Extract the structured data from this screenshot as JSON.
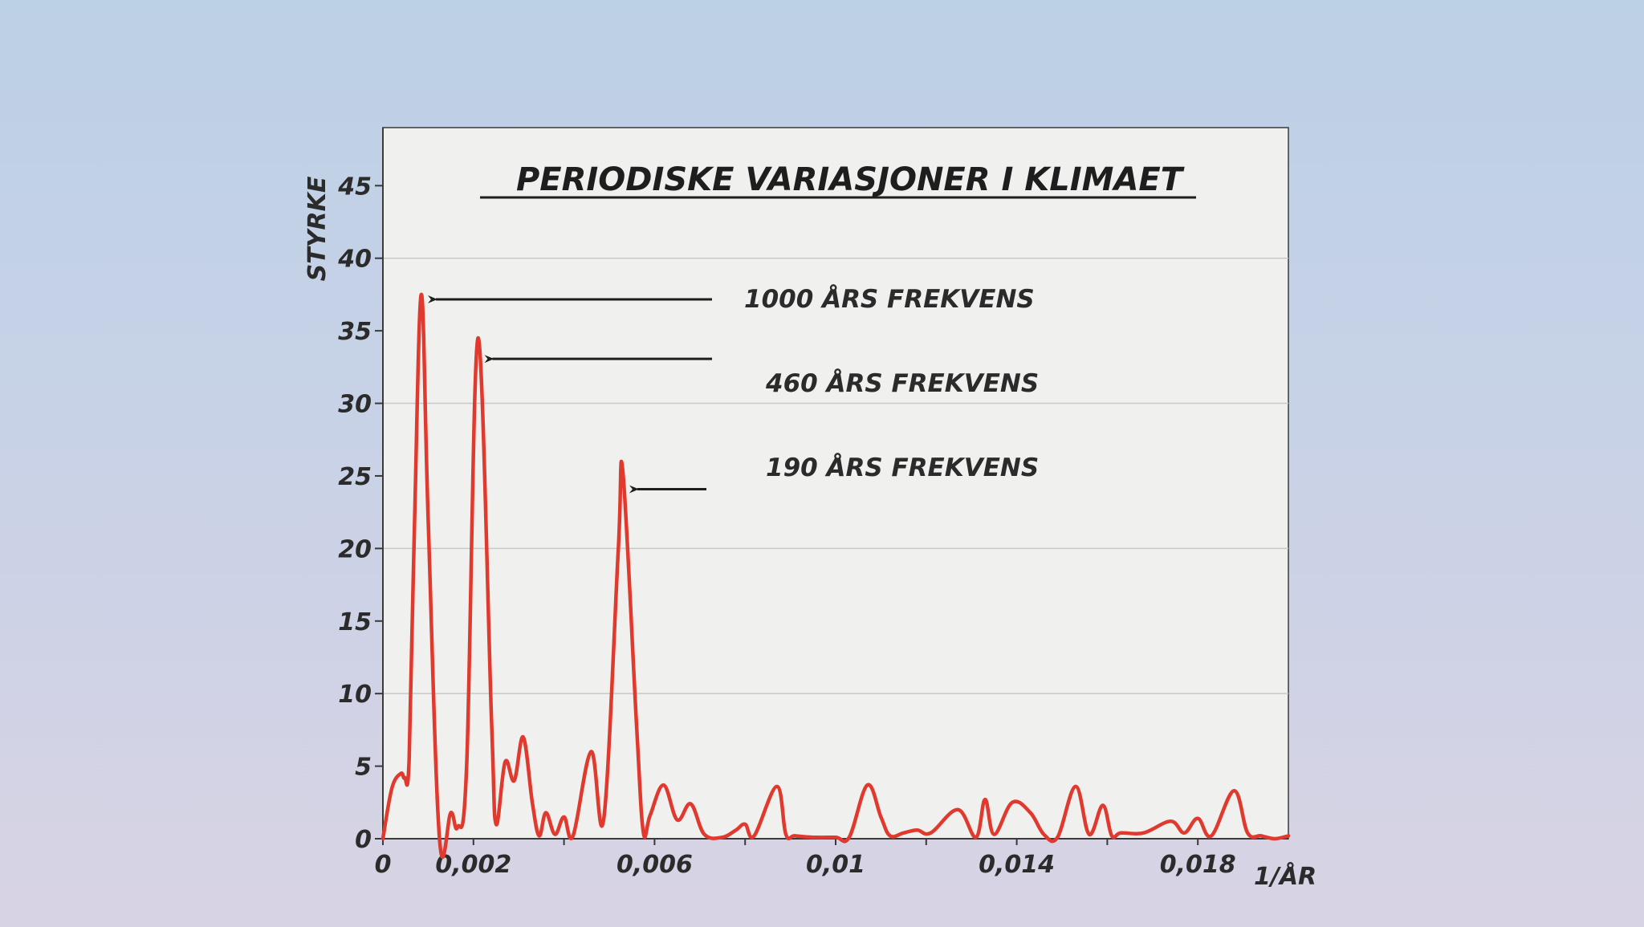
{
  "chart_data": {
    "type": "line",
    "title": "PERIODISKE VARIASJONER I KLIMAET",
    "ylabel": "STYRKE",
    "xlabel": "1/ÅR",
    "ylim": [
      0,
      49
    ],
    "xlim": [
      0,
      0.02
    ],
    "y_ticks": [
      0,
      5,
      10,
      15,
      20,
      25,
      30,
      35,
      40,
      45
    ],
    "y_tick_labels": [
      "0",
      "5",
      "10",
      "15",
      "20",
      "25",
      "30",
      "35",
      "40",
      "45"
    ],
    "x_ticks": [
      0,
      0.002,
      0.004,
      0.006,
      0.008,
      0.01,
      0.012,
      0.014,
      0.016,
      0.018
    ],
    "x_tick_labels": [
      {
        "x": 0,
        "label": "0"
      },
      {
        "x": 0.002,
        "label": "0,002"
      },
      {
        "x": 0.006,
        "label": "0,006"
      },
      {
        "x": 0.01,
        "label": "0,01"
      },
      {
        "x": 0.014,
        "label": "0,014"
      },
      {
        "x": 0.018,
        "label": "0,018"
      }
    ],
    "gridlines_y": [
      10,
      20,
      30,
      40
    ],
    "series": [
      {
        "color": "#e03a2f",
        "points": [
          [
            0,
            0
          ],
          [
            0.0002,
            3.5
          ],
          [
            0.0004,
            4.5
          ],
          [
            0.00048,
            4.2
          ],
          [
            0.00058,
            5.5
          ],
          [
            0.0007,
            22
          ],
          [
            0.00085,
            37.5
          ],
          [
            0.001,
            22
          ],
          [
            0.00125,
            0
          ],
          [
            0.0015,
            1.8
          ],
          [
            0.00165,
            0.8
          ],
          [
            0.00185,
            5
          ],
          [
            0.0021,
            34.5
          ],
          [
            0.0024,
            8
          ],
          [
            0.0025,
            1
          ],
          [
            0.0027,
            5.3
          ],
          [
            0.0029,
            4
          ],
          [
            0.0031,
            7
          ],
          [
            0.0033,
            2.5
          ],
          [
            0.00345,
            0.2
          ],
          [
            0.0036,
            1.8
          ],
          [
            0.0038,
            0.3
          ],
          [
            0.004,
            1.5
          ],
          [
            0.0042,
            0.2
          ],
          [
            0.0046,
            6
          ],
          [
            0.00488,
            1.4
          ],
          [
            0.0052,
            20
          ],
          [
            0.0053,
            25.3
          ],
          [
            0.0056,
            8
          ],
          [
            0.00575,
            0.5
          ],
          [
            0.0059,
            1.6
          ],
          [
            0.0062,
            3.7
          ],
          [
            0.0065,
            1.3
          ],
          [
            0.0068,
            2.4
          ],
          [
            0.0071,
            0.3
          ],
          [
            0.0075,
            0.1
          ],
          [
            0.0078,
            0.6
          ],
          [
            0.008,
            1
          ],
          [
            0.0082,
            0.2
          ],
          [
            0.0087,
            3.6
          ],
          [
            0.0089,
            0.3
          ],
          [
            0.0091,
            0.2
          ],
          [
            0.0095,
            0.1
          ],
          [
            0.01,
            0.1
          ],
          [
            0.0103,
            0.1
          ],
          [
            0.0107,
            3.7
          ],
          [
            0.011,
            1.5
          ],
          [
            0.0112,
            0.2
          ],
          [
            0.0115,
            0.4
          ],
          [
            0.0118,
            0.6
          ],
          [
            0.0121,
            0.4
          ],
          [
            0.0127,
            2
          ],
          [
            0.0131,
            0.1
          ],
          [
            0.0133,
            2.7
          ],
          [
            0.0135,
            0.3
          ],
          [
            0.0139,
            2.5
          ],
          [
            0.0143,
            1.8
          ],
          [
            0.0146,
            0.3
          ],
          [
            0.0149,
            0.1
          ],
          [
            0.0153,
            3.6
          ],
          [
            0.0156,
            0.3
          ],
          [
            0.0159,
            2.3
          ],
          [
            0.0161,
            0.2
          ],
          [
            0.0163,
            0.4
          ],
          [
            0.0168,
            0.4
          ],
          [
            0.0174,
            1.2
          ],
          [
            0.0177,
            0.4
          ],
          [
            0.018,
            1.4
          ],
          [
            0.0183,
            0.2
          ],
          [
            0.0188,
            3.3
          ],
          [
            0.0191,
            0.4
          ],
          [
            0.0194,
            0.2
          ],
          [
            0.0197,
            0
          ],
          [
            0.02,
            0.2
          ]
        ]
      }
    ],
    "annotations": [
      {
        "label": "1000 ÅRS FREKVENS",
        "target_x": 0.00085,
        "target_y": 37.5
      },
      {
        "label": "460 ÅRS FREKVENS",
        "target_x": 0.0021,
        "target_y": 34.5
      },
      {
        "label": "190 ÅRS FREKVENS",
        "target_x": 0.0053,
        "target_y": 25.3
      }
    ],
    "colors": {
      "line": "#e03a2f",
      "plot_background": "#f0f0ee",
      "grid": "#c8c8c8",
      "axis": "#3a3a3a",
      "text": "#2b2b2b"
    }
  }
}
